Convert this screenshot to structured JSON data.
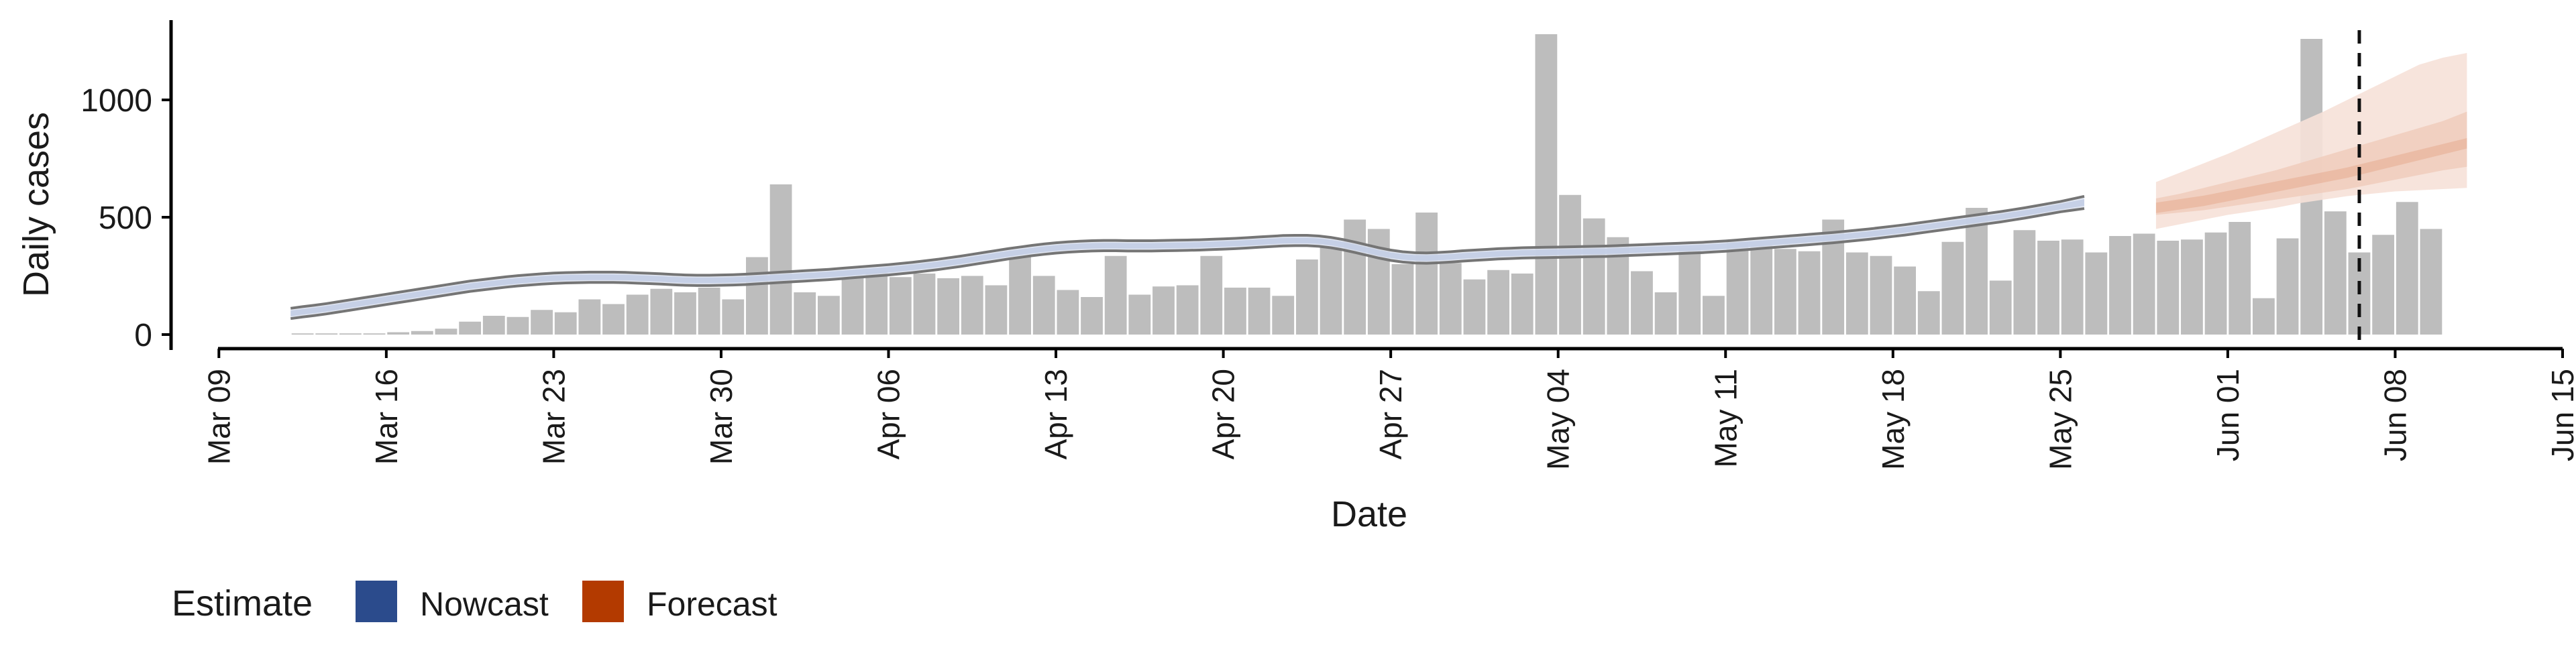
{
  "chart_data": {
    "type": "bar",
    "xlabel": "Date",
    "ylabel": "Daily cases",
    "ylim": [
      -60,
      1340
    ],
    "x_ticks": [
      "Mar 09",
      "Mar 16",
      "Mar 23",
      "Mar 30",
      "Apr 06",
      "Apr 13",
      "Apr 20",
      "Apr 27",
      "May 04",
      "May 11",
      "May 18",
      "May 25",
      "Jun 01",
      "Jun 08",
      "Jun 15"
    ],
    "y_ticks": [
      0,
      500,
      1000
    ],
    "x_start": "2020-03-07",
    "x_end": "2020-06-15",
    "reference_line_date": "2020-06-06",
    "bars": {
      "start_date": "2020-03-12",
      "values": [
        5,
        5,
        5,
        5,
        10,
        15,
        25,
        55,
        80,
        75,
        105,
        95,
        150,
        130,
        170,
        195,
        180,
        200,
        150,
        330,
        640,
        180,
        165,
        240,
        270,
        245,
        260,
        240,
        250,
        210,
        330,
        250,
        190,
        160,
        335,
        170,
        205,
        210,
        335,
        200,
        200,
        165,
        320,
        375,
        490,
        450,
        300,
        520,
        305,
        235,
        275,
        260,
        1280,
        595,
        495,
        415,
        270,
        180,
        370,
        165,
        395,
        380,
        365,
        355,
        490,
        350,
        335,
        290,
        185,
        395,
        540,
        230,
        445,
        400,
        405,
        350,
        420,
        430,
        400,
        405,
        435,
        480,
        155,
        410,
        1260,
        525,
        350,
        425,
        565,
        450
      ]
    },
    "nowcast": {
      "name": "Nowcast",
      "start_date": "2020-03-12",
      "median": [
        90,
        97,
        103,
        110,
        118,
        126,
        134,
        142,
        150,
        158,
        166,
        174,
        182,
        190,
        198,
        206,
        212,
        218,
        224,
        229,
        233,
        237,
        240,
        242,
        243,
        244,
        244,
        244,
        243,
        241,
        239,
        237,
        234,
        232,
        231,
        231,
        232,
        233,
        235,
        238,
        241,
        244,
        247,
        250,
        253,
        256,
        260,
        264,
        268,
        272,
        276,
        281,
        286,
        292,
        298,
        305,
        312,
        320,
        328,
        336,
        344,
        351,
        358,
        364,
        369,
        373,
        376,
        378,
        379,
        379,
        378,
        378,
        378,
        379,
        380,
        381,
        382,
        384,
        386,
        388,
        391,
        394,
        397,
        400,
        401,
        401,
        398,
        392,
        383,
        372,
        360,
        348,
        338,
        331,
        327,
        326,
        328,
        331,
        335,
        338,
        341,
        344,
        346,
        348,
        349,
        350,
        351,
        352,
        353,
        354,
        355,
        357,
        359,
        361,
        363,
        365,
        367,
        369,
        371,
        374,
        377,
        381,
        385,
        389,
        393,
        397,
        401,
        405,
        409,
        413,
        418,
        423,
        428,
        434,
        440,
        446,
        453,
        460,
        467,
        474,
        481,
        488,
        495,
        502,
        510,
        518,
        527,
        536,
        545,
        554,
        563
      ],
      "outer_half_width": [
        22,
        22,
        22,
        22,
        22,
        22,
        22,
        22,
        22,
        22,
        22,
        22,
        22,
        22,
        22,
        22,
        22,
        22,
        22,
        22,
        22,
        22,
        22,
        22,
        22,
        22,
        22,
        22,
        22,
        22,
        22,
        22,
        22,
        22,
        22,
        22,
        22,
        22,
        22,
        22,
        22,
        22,
        22,
        22,
        22,
        22,
        22,
        22,
        22,
        22,
        22,
        22,
        22,
        22,
        22,
        22,
        22,
        22,
        22,
        22,
        22,
        22,
        22,
        22,
        22,
        22,
        22,
        22,
        22,
        22,
        22,
        22,
        22,
        22,
        22,
        22,
        22,
        22,
        22,
        22,
        22,
        22,
        22,
        22,
        22,
        22,
        22,
        22,
        22,
        22,
        22,
        22,
        22,
        22,
        22,
        22,
        22,
        22,
        22,
        22,
        22,
        22,
        22,
        22,
        22,
        22,
        22,
        22,
        22,
        22,
        22,
        22,
        22,
        22,
        22,
        22,
        22,
        22,
        22,
        22,
        22,
        22,
        22,
        22,
        22,
        22,
        22,
        22,
        22,
        22,
        22,
        22,
        22,
        22,
        22,
        22,
        22,
        22,
        22,
        22,
        22,
        22,
        22,
        22,
        22,
        22,
        22,
        22,
        22,
        24,
        26
      ],
      "color": "#2b4b8c"
    },
    "forecast": {
      "name": "Forecast",
      "start_date": "2020-05-29",
      "dates": [
        "2020-05-29",
        "2020-05-30",
        "2020-05-31",
        "2020-06-01",
        "2020-06-02",
        "2020-06-03",
        "2020-06-04",
        "2020-06-05",
        "2020-06-06",
        "2020-06-07",
        "2020-06-08",
        "2020-06-09",
        "2020-06-10",
        "2020-06-11"
      ],
      "median": [
        540,
        555,
        570,
        590,
        610,
        630,
        650,
        670,
        690,
        715,
        740,
        765,
        790,
        815
      ],
      "inner_low": [
        510,
        520,
        530,
        545,
        560,
        575,
        590,
        605,
        620,
        640,
        660,
        680,
        700,
        715
      ],
      "inner_high": [
        580,
        600,
        625,
        650,
        675,
        700,
        730,
        760,
        790,
        820,
        850,
        880,
        910,
        950
      ],
      "outer_low": [
        450,
        470,
        490,
        510,
        525,
        540,
        560,
        575,
        590,
        600,
        610,
        615,
        620,
        625
      ],
      "outer_high": [
        650,
        690,
        730,
        770,
        815,
        860,
        905,
        950,
        1000,
        1050,
        1100,
        1150,
        1180,
        1200
      ],
      "color": "#b33a00"
    },
    "legend": {
      "title": "Estimate",
      "placement": "bottom-left",
      "items": [
        {
          "label": "Nowcast",
          "color": "#2b4b8c"
        },
        {
          "label": "Forecast",
          "color": "#b33a00"
        }
      ]
    },
    "grid": false
  }
}
